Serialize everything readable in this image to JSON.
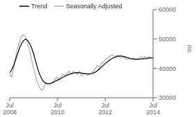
{
  "chart_data": {
    "type": "line",
    "ylabel": "no.",
    "ylim": [
      30000,
      60000
    ],
    "yticks": [
      30000,
      40000,
      50000,
      60000
    ],
    "legend": "upper left",
    "grid": false,
    "categories": [
      "Jul\n2008",
      null,
      null,
      null,
      null,
      null,
      null,
      null,
      null,
      null,
      null,
      null,
      null,
      null,
      null,
      null,
      null,
      null,
      null,
      null,
      null,
      null,
      null,
      null,
      "Jul\n2010",
      null,
      null,
      null,
      null,
      null,
      null,
      null,
      null,
      null,
      null,
      null,
      null,
      null,
      null,
      null,
      null,
      null,
      null,
      null,
      null,
      null,
      null,
      null,
      "Jul\n2012",
      null,
      null,
      null,
      null,
      null,
      null,
      null,
      null,
      null,
      null,
      null,
      null,
      null,
      null,
      null,
      null,
      null,
      null,
      null,
      null,
      null,
      null,
      null,
      "Jul\n2014"
    ],
    "series": [
      {
        "name": "Trend",
        "color": "#000000",
        "values": [
          38500,
          39500,
          41000,
          43000,
          45000,
          47000,
          48500,
          49500,
          50000,
          49500,
          48500,
          47000,
          45000,
          42500,
          40000,
          38000,
          36500,
          35500,
          35000,
          34800,
          34800,
          35000,
          35300,
          35700,
          36000,
          36300,
          36700,
          37100,
          37400,
          37700,
          38000,
          38200,
          38400,
          38500,
          38600,
          38500,
          38400,
          38300,
          38200,
          38100,
          38100,
          38200,
          38400,
          38700,
          39200,
          39800,
          40400,
          41000,
          41700,
          42200,
          42700,
          43200,
          43600,
          43900,
          44100,
          44200,
          44200,
          44100,
          43900,
          43700,
          43500,
          43300,
          43200,
          43100,
          43100,
          43100,
          43200,
          43200,
          43300,
          43400,
          43500,
          43600,
          43700
        ]
      },
      {
        "name": "Seasonally Adjusted",
        "color": "#aaaaaa",
        "values": [
          38000,
          37000,
          40000,
          44000,
          47000,
          49000,
          51000,
          51500,
          50500,
          48500,
          46000,
          43000,
          40000,
          37500,
          35000,
          33500,
          32500,
          33000,
          35000,
          34500,
          34500,
          35000,
          35500,
          36500,
          37000,
          36000,
          37500,
          38000,
          37500,
          38500,
          39000,
          38000,
          39000,
          38500,
          38000,
          39000,
          37500,
          38000,
          38500,
          37500,
          38000,
          38500,
          39000,
          40000,
          41000,
          40500,
          41500,
          42000,
          43000,
          43500,
          44000,
          44500,
          44500,
          43500,
          44500,
          44000,
          43500,
          44000,
          43500,
          43000,
          43500,
          43000,
          43500,
          43000,
          43000,
          43500,
          44000,
          43500,
          44000,
          43500,
          44000,
          43500,
          43500
        ]
      }
    ]
  }
}
